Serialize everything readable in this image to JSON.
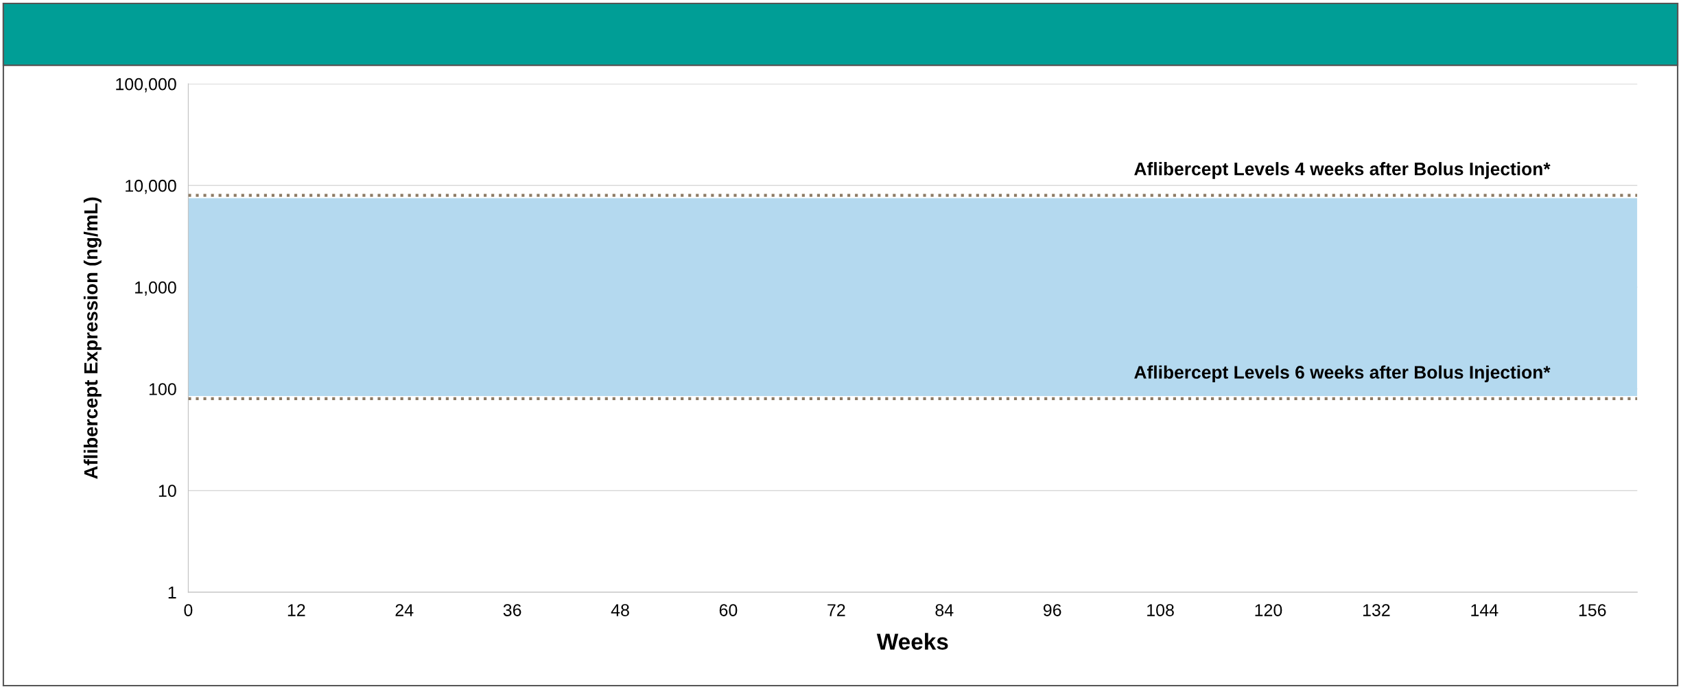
{
  "chart_data": {
    "type": "line",
    "xlabel": "Weeks",
    "ylabel": "Aflibercept Expression (ng/mL)",
    "log": "y",
    "grid": "y",
    "legend": false,
    "xlim": [
      0,
      161
    ],
    "xticks": [
      0,
      12,
      24,
      36,
      48,
      60,
      72,
      84,
      96,
      108,
      120,
      132,
      144,
      156
    ],
    "ylim": [
      1,
      100000
    ],
    "yticks": [
      1,
      10,
      100,
      {
        "value": 1000,
        "label": "1,000"
      },
      {
        "value": 10000,
        "label": "10,000"
      },
      {
        "value": 100000,
        "label": "100,000"
      }
    ],
    "ref_lines": [
      {
        "axis": "y",
        "value": 8000,
        "label": "Aflibercept Levels 4 weeks after Bolus Injection*",
        "color": "#8c7a64",
        "line_style": "dotted"
      },
      {
        "axis": "y",
        "value": 80,
        "label": "Aflibercept Levels 6 weeks after Bolus Injection*",
        "color": "#8c7a64",
        "line_style": "dotted"
      }
    ],
    "bands": [
      {
        "axis": "y",
        "from": 85,
        "to": 7500,
        "color": "#b4d9ef"
      }
    ]
  }
}
